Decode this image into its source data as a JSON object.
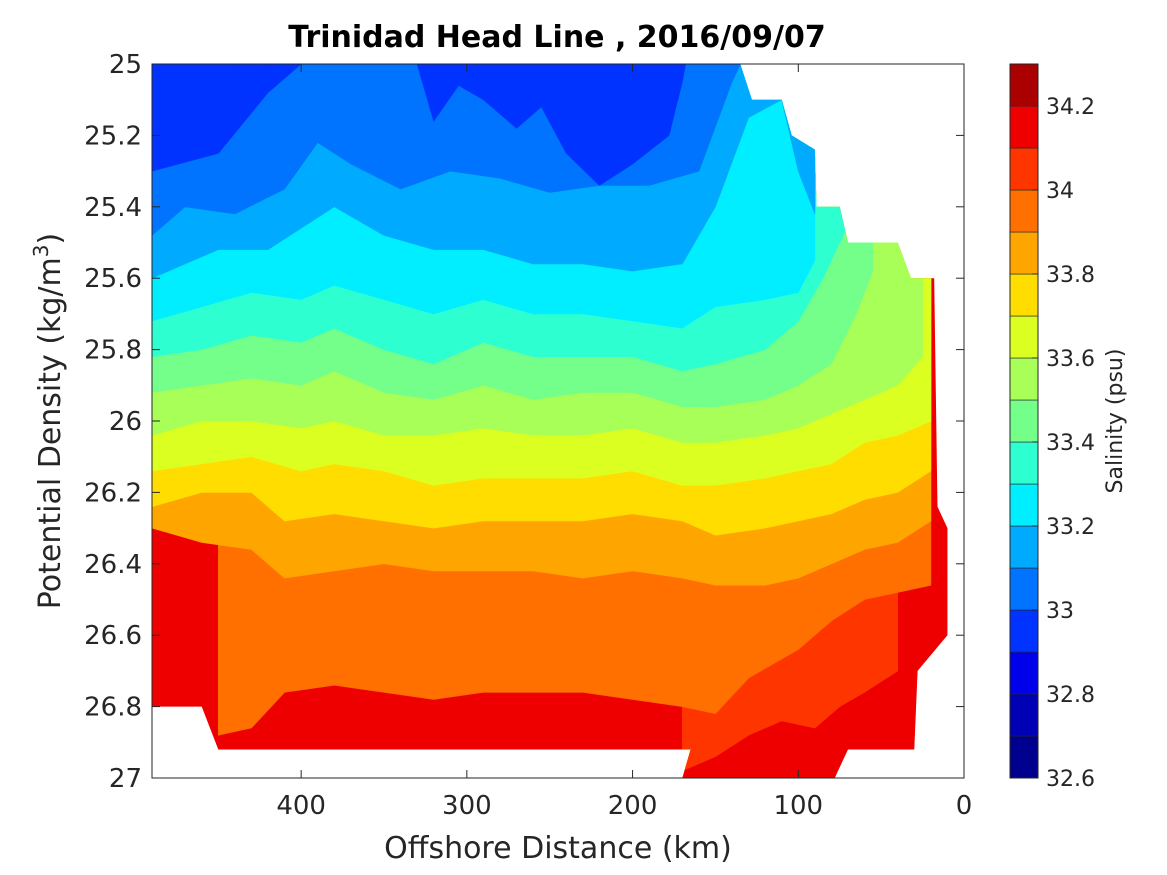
{
  "chart_data": {
    "type": "contourf",
    "title": "Trinidad Head Line , 2016/09/07",
    "xlabel": "Offshore Distance (km)",
    "ylabel_main": "Potential Density (kg/m",
    "ylabel_sup": "3",
    "ylabel_close": ")",
    "x_reversed": true,
    "xlim": [
      0,
      490
    ],
    "ylim": [
      25,
      27
    ],
    "y_reversed": true,
    "x_ticks": [
      400,
      300,
      200,
      100,
      0
    ],
    "y_ticks": [
      25,
      25.2,
      25.4,
      25.6,
      25.8,
      26,
      26.2,
      26.4,
      26.6,
      26.8,
      27
    ],
    "y_tick_labels": [
      "25",
      "25.2",
      "25.4",
      "25.6",
      "25.8",
      "26",
      "26.2",
      "26.4",
      "26.6",
      "26.8",
      "27"
    ],
    "colorbar": {
      "label": "Salinity (psu)",
      "range": [
        32.6,
        34.3
      ],
      "step": 0.1,
      "tick_values": [
        32.6,
        32.8,
        33,
        33.2,
        33.4,
        33.6,
        33.8,
        34,
        34.2
      ],
      "tick_labels": [
        "32.6",
        "32.8",
        "33",
        "33.2",
        "33.4",
        "33.6",
        "33.8",
        "34",
        "34.2"
      ],
      "levels": [
        {
          "lo": 32.6,
          "hi": 32.7,
          "color": "#00008f"
        },
        {
          "lo": 32.7,
          "hi": 32.8,
          "color": "#0000b5"
        },
        {
          "lo": 32.8,
          "hi": 32.9,
          "color": "#0000ea"
        },
        {
          "lo": 32.9,
          "hi": 33.0,
          "color": "#0033ff"
        },
        {
          "lo": 33.0,
          "hi": 33.1,
          "color": "#0073ff"
        },
        {
          "lo": 33.1,
          "hi": 33.2,
          "color": "#00aaff"
        },
        {
          "lo": 33.2,
          "hi": 33.3,
          "color": "#00eeff"
        },
        {
          "lo": 33.3,
          "hi": 33.4,
          "color": "#2effd0"
        },
        {
          "lo": 33.4,
          "hi": 33.5,
          "color": "#74ff8a"
        },
        {
          "lo": 33.5,
          "hi": 33.6,
          "color": "#a8ff57"
        },
        {
          "lo": 33.6,
          "hi": 33.7,
          "color": "#dcff22"
        },
        {
          "lo": 33.7,
          "hi": 33.8,
          "color": "#ffdd00"
        },
        {
          "lo": 33.8,
          "hi": 33.9,
          "color": "#ffa500"
        },
        {
          "lo": 33.9,
          "hi": 34.0,
          "color": "#ff7000"
        },
        {
          "lo": 34.0,
          "hi": 34.1,
          "color": "#ff3500"
        },
        {
          "lo": 34.1,
          "hi": 34.2,
          "color": "#ee0000"
        },
        {
          "lo": 34.2,
          "hi": 34.3,
          "color": "#aa0000"
        }
      ]
    },
    "field": {
      "description_of_values": "salinity (psu) at offshore distance (km) and potential density (kg/m3); contour boundaries estimated from figure",
      "isolines": [
        {
          "value": 33.0,
          "points": [
            [
              490,
              25.3
            ],
            [
              450,
              25.25
            ],
            [
              420,
              25.08
            ],
            [
              400,
              25.0
            ]
          ]
        },
        {
          "value": 33.1,
          "points": [
            [
              490,
              25.48
            ],
            [
              470,
              25.4
            ],
            [
              440,
              25.42
            ],
            [
              410,
              25.35
            ],
            [
              390,
              25.22
            ],
            [
              370,
              25.28
            ],
            [
              340,
              25.35
            ],
            [
              310,
              25.3
            ],
            [
              280,
              25.32
            ],
            [
              250,
              25.36
            ],
            [
              220,
              25.34
            ],
            [
              190,
              25.34
            ],
            [
              160,
              25.3
            ],
            [
              140,
              25.05
            ],
            [
              135,
              25.0
            ]
          ]
        },
        {
          "value": 33.2,
          "points": [
            [
              490,
              25.6
            ],
            [
              470,
              25.56
            ],
            [
              450,
              25.52
            ],
            [
              420,
              25.52
            ],
            [
              400,
              25.46
            ],
            [
              380,
              25.4
            ],
            [
              350,
              25.48
            ],
            [
              320,
              25.52
            ],
            [
              290,
              25.52
            ],
            [
              260,
              25.56
            ],
            [
              230,
              25.56
            ],
            [
              200,
              25.58
            ],
            [
              170,
              25.56
            ],
            [
              150,
              25.4
            ],
            [
              130,
              25.15
            ],
            [
              110,
              25.1
            ],
            [
              100,
              25.3
            ],
            [
              90,
              25.42
            ]
          ]
        },
        {
          "value": 33.3,
          "points": [
            [
              490,
              25.72
            ],
            [
              460,
              25.68
            ],
            [
              430,
              25.64
            ],
            [
              400,
              25.66
            ],
            [
              380,
              25.62
            ],
            [
              350,
              25.66
            ],
            [
              320,
              25.7
            ],
            [
              290,
              25.66
            ],
            [
              260,
              25.7
            ],
            [
              230,
              25.7
            ],
            [
              200,
              25.72
            ],
            [
              170,
              25.74
            ],
            [
              150,
              25.68
            ],
            [
              120,
              25.66
            ],
            [
              100,
              25.64
            ],
            [
              90,
              25.55
            ]
          ]
        },
        {
          "value": 33.4,
          "points": [
            [
              490,
              25.82
            ],
            [
              460,
              25.8
            ],
            [
              430,
              25.76
            ],
            [
              400,
              25.78
            ],
            [
              380,
              25.74
            ],
            [
              350,
              25.8
            ],
            [
              320,
              25.84
            ],
            [
              290,
              25.78
            ],
            [
              260,
              25.82
            ],
            [
              230,
              25.82
            ],
            [
              200,
              25.82
            ],
            [
              170,
              25.86
            ],
            [
              150,
              25.84
            ],
            [
              120,
              25.8
            ],
            [
              100,
              25.72
            ],
            [
              85,
              25.6
            ],
            [
              70,
              25.45
            ]
          ]
        },
        {
          "value": 33.5,
          "points": [
            [
              490,
              25.92
            ],
            [
              460,
              25.9
            ],
            [
              430,
              25.88
            ],
            [
              400,
              25.9
            ],
            [
              380,
              25.86
            ],
            [
              350,
              25.92
            ],
            [
              320,
              25.94
            ],
            [
              290,
              25.9
            ],
            [
              260,
              25.94
            ],
            [
              230,
              25.92
            ],
            [
              200,
              25.92
            ],
            [
              170,
              25.96
            ],
            [
              150,
              25.96
            ],
            [
              120,
              25.94
            ],
            [
              100,
              25.9
            ],
            [
              80,
              25.84
            ],
            [
              65,
              25.7
            ],
            [
              55,
              25.58
            ]
          ]
        },
        {
          "value": 33.6,
          "points": [
            [
              490,
              26.04
            ],
            [
              460,
              26.0
            ],
            [
              430,
              26.0
            ],
            [
              400,
              26.02
            ],
            [
              380,
              26.0
            ],
            [
              350,
              26.04
            ],
            [
              320,
              26.04
            ],
            [
              290,
              26.02
            ],
            [
              260,
              26.04
            ],
            [
              230,
              26.04
            ],
            [
              200,
              26.02
            ],
            [
              170,
              26.06
            ],
            [
              150,
              26.06
            ],
            [
              120,
              26.04
            ],
            [
              100,
              26.02
            ],
            [
              80,
              25.98
            ],
            [
              60,
              25.94
            ],
            [
              40,
              25.9
            ],
            [
              25,
              25.82
            ]
          ]
        },
        {
          "value": 33.7,
          "points": [
            [
              490,
              26.14
            ],
            [
              460,
              26.12
            ],
            [
              430,
              26.1
            ],
            [
              400,
              26.14
            ],
            [
              380,
              26.12
            ],
            [
              350,
              26.14
            ],
            [
              320,
              26.18
            ],
            [
              290,
              26.16
            ],
            [
              260,
              26.16
            ],
            [
              230,
              26.16
            ],
            [
              200,
              26.14
            ],
            [
              170,
              26.18
            ],
            [
              150,
              26.18
            ],
            [
              120,
              26.16
            ],
            [
              100,
              26.14
            ],
            [
              80,
              26.12
            ],
            [
              60,
              26.06
            ],
            [
              40,
              26.04
            ],
            [
              20,
              26.0
            ]
          ]
        },
        {
          "value": 33.8,
          "points": [
            [
              490,
              26.24
            ],
            [
              460,
              26.2
            ],
            [
              430,
              26.2
            ],
            [
              410,
              26.28
            ],
            [
              380,
              26.26
            ],
            [
              350,
              26.28
            ],
            [
              320,
              26.3
            ],
            [
              290,
              26.28
            ],
            [
              260,
              26.28
            ],
            [
              230,
              26.28
            ],
            [
              200,
              26.26
            ],
            [
              170,
              26.28
            ],
            [
              150,
              26.32
            ],
            [
              120,
              26.3
            ],
            [
              100,
              26.28
            ],
            [
              80,
              26.26
            ],
            [
              60,
              26.22
            ],
            [
              40,
              26.2
            ],
            [
              20,
              26.14
            ]
          ]
        },
        {
          "value": 33.9,
          "points": [
            [
              490,
              26.3
            ],
            [
              460,
              26.34
            ],
            [
              430,
              26.36
            ],
            [
              410,
              26.44
            ],
            [
              380,
              26.42
            ],
            [
              350,
              26.4
            ],
            [
              320,
              26.42
            ],
            [
              290,
              26.42
            ],
            [
              260,
              26.42
            ],
            [
              230,
              26.44
            ],
            [
              200,
              26.42
            ],
            [
              170,
              26.44
            ],
            [
              150,
              26.46
            ],
            [
              120,
              26.46
            ],
            [
              100,
              26.44
            ],
            [
              80,
              26.4
            ],
            [
              60,
              26.36
            ],
            [
              40,
              26.34
            ],
            [
              20,
              26.28
            ]
          ]
        },
        {
          "value": 34.0,
          "points": [
            [
              450,
              26.88
            ],
            [
              430,
              26.86
            ],
            [
              410,
              26.76
            ],
            [
              380,
              26.74
            ],
            [
              350,
              26.76
            ],
            [
              320,
              26.78
            ],
            [
              290,
              26.76
            ],
            [
              260,
              26.76
            ],
            [
              230,
              26.76
            ],
            [
              200,
              26.78
            ],
            [
              170,
              26.8
            ],
            [
              150,
              26.82
            ],
            [
              130,
              26.72
            ],
            [
              100,
              26.64
            ],
            [
              80,
              26.56
            ],
            [
              60,
              26.5
            ],
            [
              40,
              26.48
            ],
            [
              20,
              26.46
            ]
          ]
        },
        {
          "value": 34.1,
          "points": [
            [
              170,
              26.98
            ],
            [
              150,
              26.94
            ],
            [
              130,
              26.88
            ],
            [
              110,
              26.84
            ],
            [
              90,
              26.86
            ],
            [
              75,
              26.8
            ],
            [
              60,
              26.76
            ],
            [
              40,
              26.7
            ]
          ]
        }
      ]
    }
  }
}
